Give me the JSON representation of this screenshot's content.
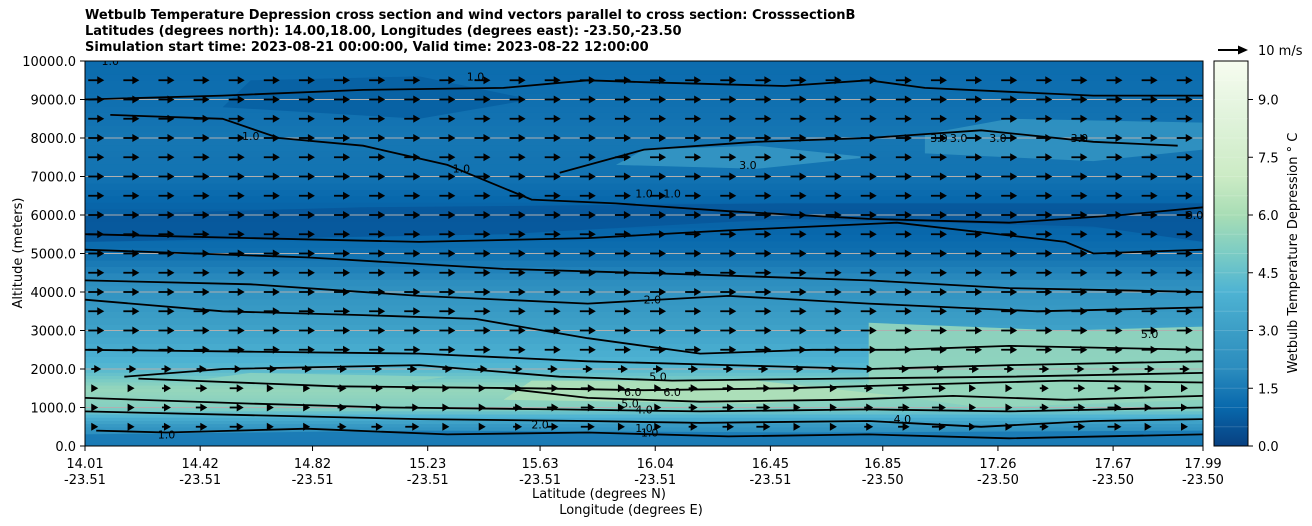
{
  "title": {
    "line1": "Wetbulb Temperature Depression cross section and wind vectors parallel to cross section: CrosssectionB",
    "line2": "Latitudes (degrees north): 14.00,18.00, Longitudes (degrees east): -23.50,-23.50",
    "line3": "Simulation start time: 2023-08-21 00:00:00, Valid time: 2023-08-22 12:00:00"
  },
  "chart_data": {
    "type": "heatmap",
    "ylabel": "Altitude (meters)",
    "xlabel_lat": "Latitude (degrees N)",
    "xlabel_lon": "Longitude (degrees E)",
    "ylim": [
      0,
      10000
    ],
    "xlim": [
      14.01,
      17.99
    ],
    "y_ticks": [
      "0.0",
      "1000.0",
      "2000.0",
      "3000.0",
      "4000.0",
      "5000.0",
      "6000.0",
      "7000.0",
      "8000.0",
      "9000.0",
      "10000.0"
    ],
    "y_tick_values": [
      0,
      1000,
      2000,
      3000,
      4000,
      5000,
      6000,
      7000,
      8000,
      9000,
      10000
    ],
    "x_ticks": [
      {
        "lat": "14.01",
        "lon": "-23.51",
        "value": 14.01
      },
      {
        "lat": "14.42",
        "lon": "-23.51",
        "value": 14.42
      },
      {
        "lat": "14.82",
        "lon": "-23.51",
        "value": 14.82
      },
      {
        "lat": "15.23",
        "lon": "-23.51",
        "value": 15.23
      },
      {
        "lat": "15.63",
        "lon": "-23.51",
        "value": 15.63
      },
      {
        "lat": "16.04",
        "lon": "-23.51",
        "value": 16.04
      },
      {
        "lat": "16.45",
        "lon": "-23.51",
        "value": 16.45
      },
      {
        "lat": "16.85",
        "lon": "-23.50",
        "value": 16.85
      },
      {
        "lat": "17.26",
        "lon": "-23.50",
        "value": 17.26
      },
      {
        "lat": "17.67",
        "lon": "-23.50",
        "value": 17.67
      },
      {
        "lat": "17.99",
        "lon": "-23.50",
        "value": 17.99
      }
    ],
    "colorbar": {
      "label": "Wetbulb Temperature Depression ° C",
      "range": [
        0,
        10
      ],
      "ticks": [
        "0.0",
        "1.5",
        "3.0",
        "4.5",
        "6.0",
        "7.5",
        "9.0"
      ],
      "tick_values": [
        0,
        1.5,
        3.0,
        4.5,
        6.0,
        7.5,
        9.0
      ],
      "colormap": "GnBu_r"
    },
    "quiver_key": "10 m/s",
    "grid": true,
    "contour_labels": [
      "1.0",
      "2.0",
      "3.0",
      "4.0",
      "5.0",
      "6.0"
    ],
    "depression_profile": [
      {
        "alt": 0,
        "value": 1.5
      },
      {
        "alt": 500,
        "value": 2.5
      },
      {
        "alt": 1000,
        "value": 5.2
      },
      {
        "alt": 1500,
        "value": 5.6
      },
      {
        "alt": 2000,
        "value": 4.2
      },
      {
        "alt": 3000,
        "value": 3.2
      },
      {
        "alt": 4000,
        "value": 2.4
      },
      {
        "alt": 5000,
        "value": 1.2
      },
      {
        "alt": 6000,
        "value": 0.8
      },
      {
        "alt": 7000,
        "value": 1.3
      },
      {
        "alt": 8000,
        "value": 1.4
      },
      {
        "alt": 9000,
        "value": 1.2
      },
      {
        "alt": 10000,
        "value": 1.1
      }
    ]
  }
}
